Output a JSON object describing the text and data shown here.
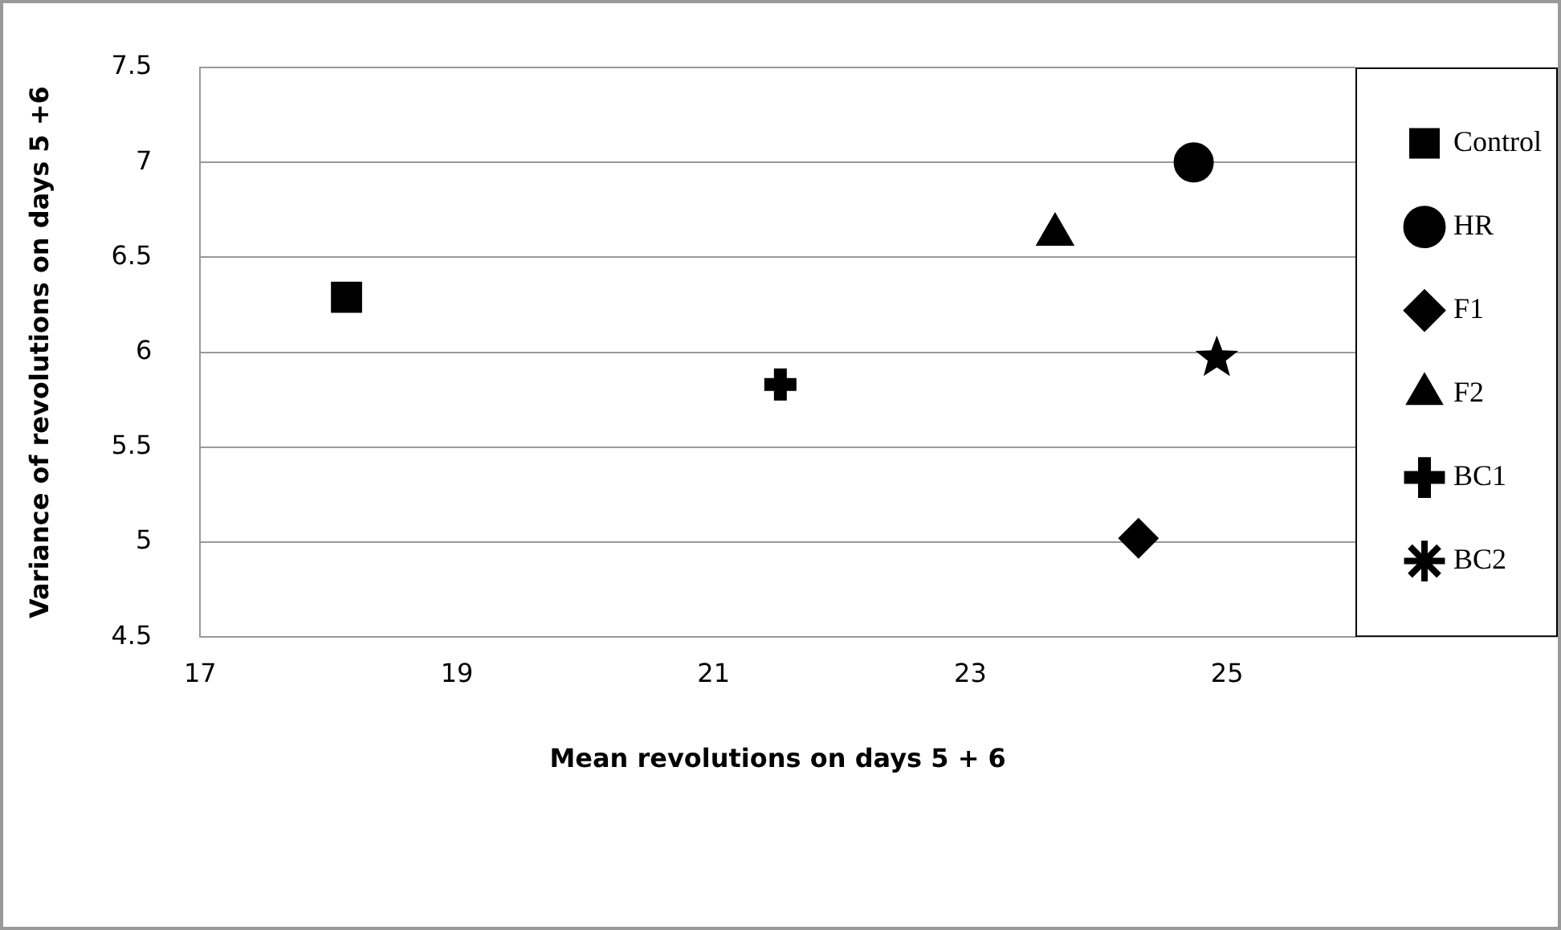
{
  "chart_data": {
    "type": "scatter",
    "xlabel": "Mean revolutions on days 5 + 6",
    "ylabel": "Variance of revolutions on days 5 +6",
    "xlim": [
      17,
      26
    ],
    "xticks": [
      17,
      19,
      21,
      23,
      25
    ],
    "ylim": [
      4.5,
      7.5
    ],
    "yticks": [
      4.5,
      5,
      5.5,
      6,
      6.5,
      7,
      7.5
    ],
    "grid": "y",
    "legend": "right",
    "series": [
      {
        "name": "Control",
        "color": "#000000",
        "marker": "square",
        "x": [
          18.14
        ],
        "values": [
          6.29
        ]
      },
      {
        "name": "HR",
        "color": "#000000",
        "marker": "circle",
        "x": [
          24.74
        ],
        "values": [
          7.0
        ]
      },
      {
        "name": "F1",
        "color": "#000000",
        "marker": "diamond",
        "x": [
          24.31
        ],
        "values": [
          5.02
        ]
      },
      {
        "name": "F2",
        "color": "#000000",
        "marker": "triangle",
        "x": [
          23.66
        ],
        "values": [
          6.62
        ]
      },
      {
        "name": "BC1",
        "color": "#000000",
        "marker": "cross",
        "x": [
          21.52
        ],
        "values": [
          5.83
        ]
      },
      {
        "name": "BC2",
        "color": "#000000",
        "marker": "star",
        "x": [
          24.92
        ],
        "values": [
          5.97
        ]
      }
    ]
  }
}
